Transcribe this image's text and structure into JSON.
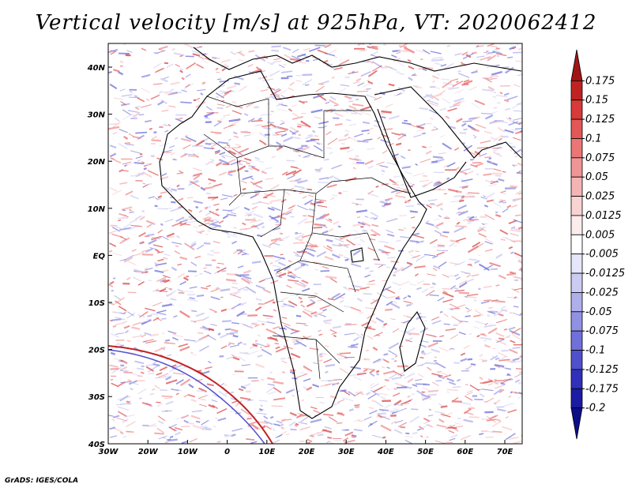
{
  "title": "Vertical velocity [m/s] at 925hPa, VT: 2020062412",
  "credit": "GrADS: IGES/COLA",
  "lat_ticks": [
    "40N",
    "30N",
    "20N",
    "10N",
    "EQ",
    "10S",
    "20S",
    "30S",
    "40S"
  ],
  "lon_ticks": [
    "30W",
    "20W",
    "10W",
    "0",
    "10E",
    "20E",
    "30E",
    "40E",
    "50E",
    "60E",
    "70E"
  ],
  "colorbar": {
    "labels": [
      "0.175",
      "0.15",
      "0.125",
      "0.1",
      "0.075",
      "0.05",
      "0.025",
      "0.0125",
      "0.005",
      "-0.005",
      "-0.0125",
      "-0.025",
      "-0.05",
      "-0.075",
      "-0.1",
      "-0.125",
      "-0.175",
      "-0.2"
    ],
    "colors": [
      "#a01616",
      "#c02222",
      "#d83a3a",
      "#e35757",
      "#ea7676",
      "#f09595",
      "#f5b4b4",
      "#f9d2d2",
      "#fcecec",
      "#ffffff",
      "#e6e6fa",
      "#cbcbf3",
      "#afafec",
      "#9191e4",
      "#7070da",
      "#5050cc",
      "#3030bb",
      "#1b1ba3",
      "#0d0d8a"
    ]
  }
}
